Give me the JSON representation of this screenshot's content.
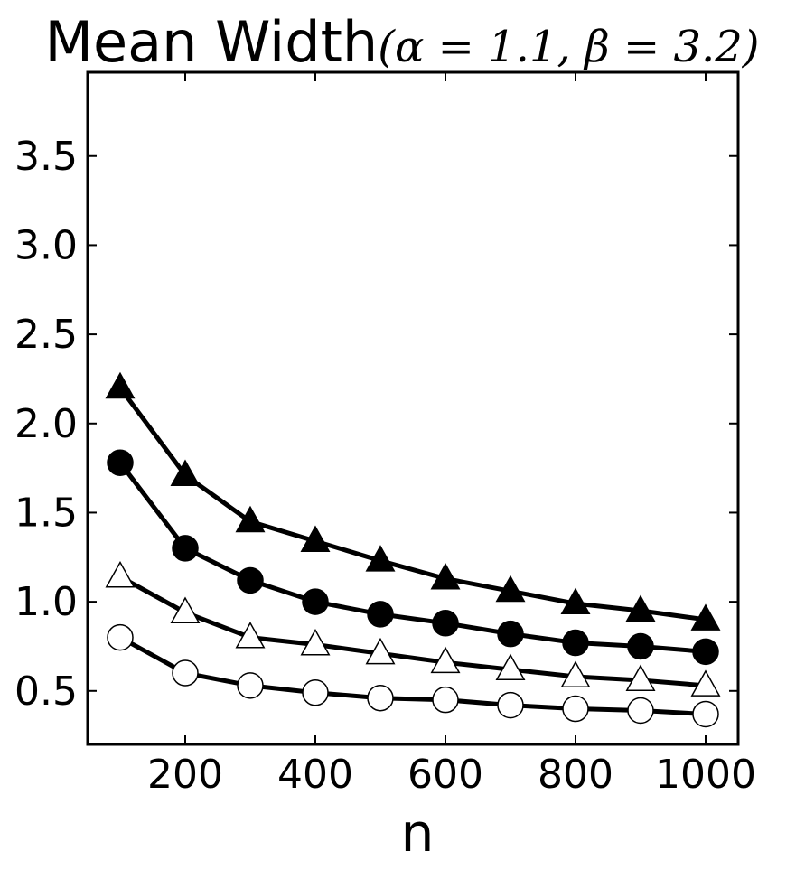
{
  "chart_data": {
    "type": "line",
    "title_prefix": "Mean Width",
    "title_math": "(α = 1.1, β = 3.2)",
    "xlabel": "n",
    "ylabel": "",
    "xlim": [
      50,
      1050
    ],
    "ylim": [
      0.2,
      3.97
    ],
    "grid": false,
    "x": [
      100,
      200,
      300,
      400,
      500,
      600,
      700,
      800,
      900,
      1000
    ],
    "xticks": [
      200,
      400,
      600,
      800,
      1000
    ],
    "yticks": [
      0.5,
      1.0,
      1.5,
      2.0,
      2.5,
      3.0,
      3.5
    ],
    "series": [
      {
        "marker": "triangle",
        "fill": "#000000",
        "values": [
          2.2,
          1.71,
          1.45,
          1.34,
          1.23,
          1.13,
          1.06,
          0.99,
          0.95,
          0.9
        ]
      },
      {
        "marker": "circle",
        "fill": "#000000",
        "values": [
          1.78,
          1.3,
          1.12,
          1.0,
          0.93,
          0.88,
          0.82,
          0.77,
          0.75,
          0.72
        ]
      },
      {
        "marker": "triangle",
        "fill": "#ffffff",
        "values": [
          1.14,
          0.94,
          0.8,
          0.76,
          0.71,
          0.66,
          0.62,
          0.58,
          0.56,
          0.53
        ]
      },
      {
        "marker": "circle",
        "fill": "#ffffff",
        "values": [
          0.8,
          0.6,
          0.53,
          0.49,
          0.46,
          0.45,
          0.42,
          0.4,
          0.39,
          0.37
        ]
      }
    ]
  }
}
